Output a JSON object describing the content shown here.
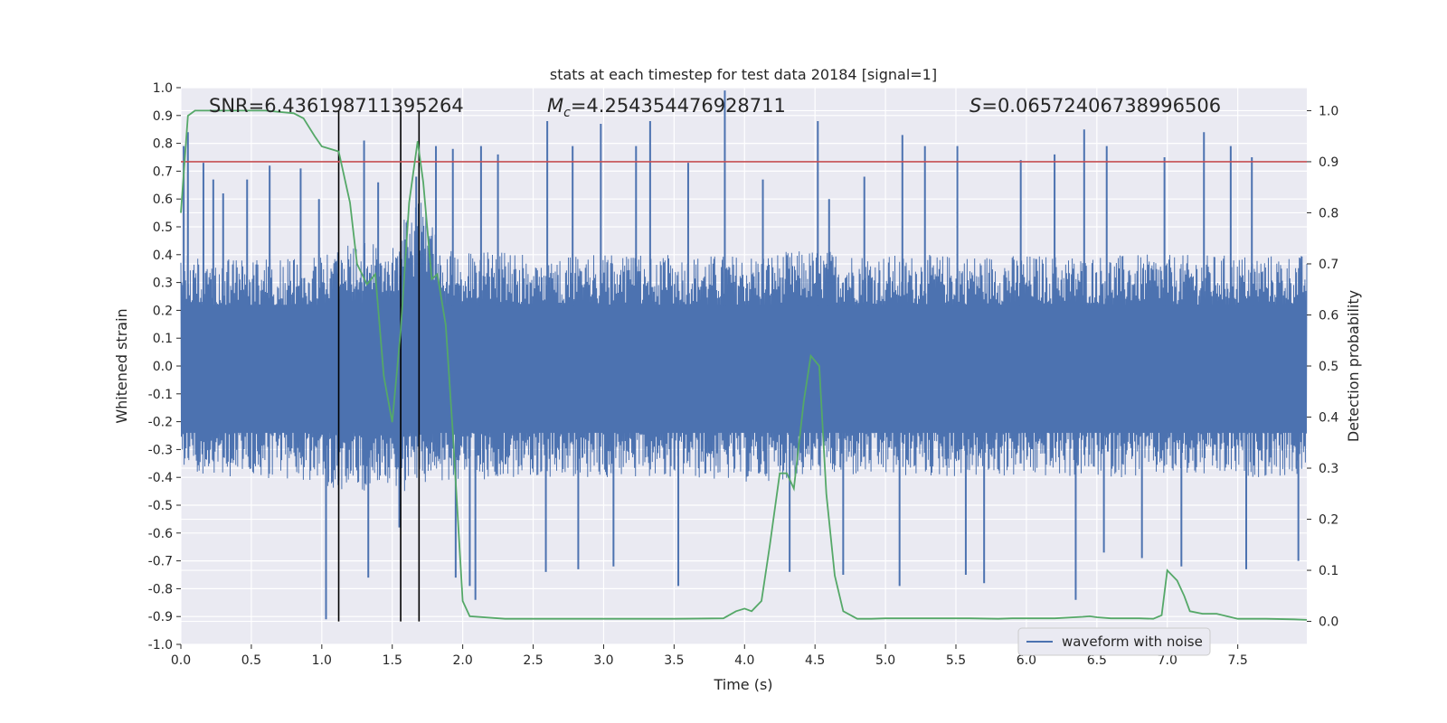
{
  "chart_data": {
    "type": "line",
    "title": "stats at each timestep for test data 20184 [signal=1]",
    "xlabel": "Time (s)",
    "ylabel": "Whitened strain",
    "ylabel_right": "Detection probability",
    "xlim": [
      0.0,
      7.99
    ],
    "ylim": [
      -1.0,
      1.0
    ],
    "ylim_right": [
      -0.045,
      1.045
    ],
    "x_ticks": [
      "0.0",
      "0.5",
      "1.0",
      "1.5",
      "2.0",
      "2.5",
      "3.0",
      "3.5",
      "4.0",
      "4.5",
      "5.0",
      "5.5",
      "6.0",
      "6.5",
      "7.0",
      "7.5"
    ],
    "y_ticks": [
      "-1.0",
      "-0.9",
      "-0.8",
      "-0.7",
      "-0.6",
      "-0.5",
      "-0.4",
      "-0.3",
      "-0.2",
      "-0.1",
      "0.0",
      "0.1",
      "0.2",
      "0.3",
      "0.4",
      "0.5",
      "0.6",
      "0.7",
      "0.8",
      "0.9",
      "1.0"
    ],
    "y_ticks_right": [
      "0.0",
      "0.1",
      "0.2",
      "0.3",
      "0.4",
      "0.5",
      "0.6",
      "0.7",
      "0.8",
      "0.9",
      "1.0"
    ],
    "annotations": {
      "snr": "SNR=6.436198711395264",
      "mc_symbol": "M",
      "mc_sub": "c",
      "mc_value": "=4.254354476928711",
      "s_symbol": "S",
      "s_value": "=0.06572406738996506"
    },
    "legend": {
      "entry": "waveform with noise",
      "position": "lower-right"
    },
    "grid": true,
    "threshold_right": 0.9,
    "vlines_x": [
      1.12,
      1.56,
      1.69
    ],
    "series": [
      {
        "name": "waveform with noise",
        "color": "#4c72b0",
        "envelope": {
          "x": [
            0.0,
            0.5,
            1.0,
            1.1,
            1.3,
            1.5,
            1.6,
            1.7,
            1.8,
            2.0,
            2.5,
            3.0,
            3.5,
            4.0,
            4.5,
            5.0,
            5.5,
            6.0,
            6.5,
            7.0,
            7.5,
            7.99
          ],
          "hi": [
            0.4,
            0.38,
            0.4,
            0.42,
            0.45,
            0.42,
            0.55,
            0.6,
            0.5,
            0.42,
            0.4,
            0.4,
            0.4,
            0.4,
            0.42,
            0.4,
            0.4,
            0.4,
            0.4,
            0.4,
            0.4,
            0.4
          ],
          "lo": [
            -0.4,
            -0.4,
            -0.42,
            -0.45,
            -0.45,
            -0.45,
            -0.45,
            -0.42,
            -0.42,
            -0.42,
            -0.4,
            -0.4,
            -0.4,
            -0.42,
            -0.4,
            -0.4,
            -0.4,
            -0.4,
            -0.4,
            -0.4,
            -0.4,
            -0.4
          ]
        },
        "spikes": [
          {
            "x": 0.02,
            "y": 0.79
          },
          {
            "x": 0.05,
            "y": 0.84
          },
          {
            "x": 0.16,
            "y": 0.73
          },
          {
            "x": 0.23,
            "y": 0.67
          },
          {
            "x": 0.3,
            "y": 0.62
          },
          {
            "x": 0.47,
            "y": 0.67
          },
          {
            "x": 0.63,
            "y": 0.72
          },
          {
            "x": 0.85,
            "y": 0.71
          },
          {
            "x": 0.98,
            "y": 0.6
          },
          {
            "x": 1.3,
            "y": 0.81
          },
          {
            "x": 1.4,
            "y": 0.66
          },
          {
            "x": 1.67,
            "y": 0.68
          },
          {
            "x": 1.81,
            "y": 0.79
          },
          {
            "x": 1.93,
            "y": 0.78
          },
          {
            "x": 2.13,
            "y": 0.79
          },
          {
            "x": 2.25,
            "y": 0.76
          },
          {
            "x": 2.6,
            "y": 0.88
          },
          {
            "x": 2.78,
            "y": 0.79
          },
          {
            "x": 2.98,
            "y": 0.87
          },
          {
            "x": 3.23,
            "y": 0.79
          },
          {
            "x": 3.33,
            "y": 0.88
          },
          {
            "x": 3.86,
            "y": 0.99
          },
          {
            "x": 3.6,
            "y": 0.73
          },
          {
            "x": 4.13,
            "y": 0.67
          },
          {
            "x": 4.52,
            "y": 0.88
          },
          {
            "x": 4.6,
            "y": 0.6
          },
          {
            "x": 4.85,
            "y": 0.68
          },
          {
            "x": 5.12,
            "y": 0.83
          },
          {
            "x": 5.28,
            "y": 0.79
          },
          {
            "x": 5.51,
            "y": 0.79
          },
          {
            "x": 5.96,
            "y": 0.74
          },
          {
            "x": 6.2,
            "y": 0.76
          },
          {
            "x": 6.41,
            "y": 0.85
          },
          {
            "x": 6.57,
            "y": 0.79
          },
          {
            "x": 6.98,
            "y": 0.75
          },
          {
            "x": 7.26,
            "y": 0.84
          },
          {
            "x": 7.45,
            "y": 0.79
          },
          {
            "x": 7.6,
            "y": 0.75
          },
          {
            "x": 1.03,
            "y": -0.91
          },
          {
            "x": 1.33,
            "y": -0.76
          },
          {
            "x": 1.55,
            "y": -0.58
          },
          {
            "x": 1.95,
            "y": -0.76
          },
          {
            "x": 2.05,
            "y": -0.79
          },
          {
            "x": 2.09,
            "y": -0.84
          },
          {
            "x": 2.59,
            "y": -0.74
          },
          {
            "x": 2.82,
            "y": -0.73
          },
          {
            "x": 3.07,
            "y": -0.72
          },
          {
            "x": 3.53,
            "y": -0.79
          },
          {
            "x": 4.32,
            "y": -0.74
          },
          {
            "x": 4.7,
            "y": -0.75
          },
          {
            "x": 5.1,
            "y": -0.79
          },
          {
            "x": 5.57,
            "y": -0.75
          },
          {
            "x": 5.7,
            "y": -0.78
          },
          {
            "x": 6.35,
            "y": -0.84
          },
          {
            "x": 6.55,
            "y": -0.67
          },
          {
            "x": 6.82,
            "y": -0.69
          },
          {
            "x": 7.1,
            "y": -0.72
          },
          {
            "x": 7.56,
            "y": -0.73
          },
          {
            "x": 7.93,
            "y": -0.7
          }
        ]
      },
      {
        "name": "Detection probability",
        "axis": "right",
        "color": "#55a868",
        "x": [
          0.0,
          0.05,
          0.1,
          0.2,
          0.4,
          0.6,
          0.8,
          0.87,
          0.95,
          1.0,
          1.12,
          1.2,
          1.25,
          1.32,
          1.38,
          1.44,
          1.5,
          1.56,
          1.62,
          1.68,
          1.72,
          1.78,
          1.82,
          1.88,
          1.93,
          2.0,
          2.05,
          2.3,
          2.6,
          2.9,
          3.2,
          3.5,
          3.85,
          3.94,
          4.0,
          4.05,
          4.12,
          4.18,
          4.25,
          4.3,
          4.35,
          4.42,
          4.47,
          4.53,
          4.58,
          4.64,
          4.7,
          4.8,
          4.9,
          5.0,
          5.2,
          5.4,
          5.6,
          5.8,
          5.9,
          6.0,
          6.2,
          6.4,
          6.45,
          6.5,
          6.6,
          6.8,
          6.9,
          6.96,
          7.0,
          7.07,
          7.12,
          7.16,
          7.25,
          7.35,
          7.5,
          7.7,
          7.9,
          7.99
        ],
        "y": [
          0.8,
          0.99,
          1.0,
          1.0,
          1.0,
          1.0,
          0.995,
          0.985,
          0.95,
          0.93,
          0.92,
          0.82,
          0.7,
          0.66,
          0.68,
          0.48,
          0.39,
          0.57,
          0.82,
          0.94,
          0.86,
          0.67,
          0.68,
          0.58,
          0.37,
          0.04,
          0.01,
          0.005,
          0.005,
          0.005,
          0.005,
          0.005,
          0.006,
          0.02,
          0.025,
          0.02,
          0.04,
          0.15,
          0.29,
          0.29,
          0.26,
          0.43,
          0.52,
          0.5,
          0.25,
          0.09,
          0.02,
          0.005,
          0.005,
          0.006,
          0.006,
          0.006,
          0.006,
          0.005,
          0.006,
          0.006,
          0.006,
          0.009,
          0.01,
          0.008,
          0.006,
          0.006,
          0.005,
          0.012,
          0.1,
          0.08,
          0.05,
          0.02,
          0.015,
          0.015,
          0.005,
          0.005,
          0.004,
          0.003
        ]
      }
    ]
  }
}
